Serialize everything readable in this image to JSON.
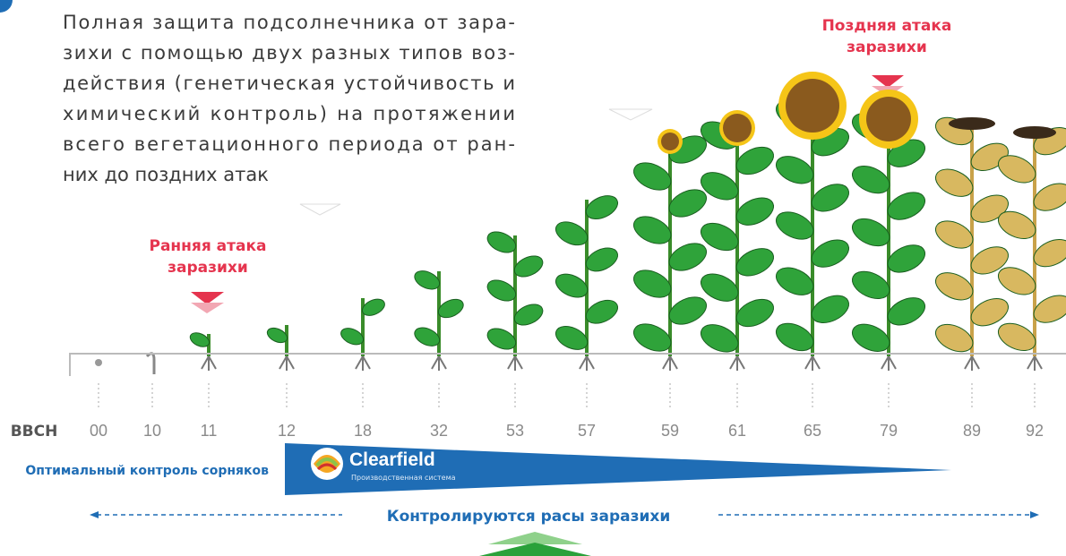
{
  "intro": {
    "lines": [
      "Полная защита подсолнечника от зара-",
      "зихи с помощью двух разных типов воз-",
      "действия (генетическая устойчивость и",
      "химический контроль) на протяжении",
      "всего вегетационного периода от ран-",
      "них до поздних атак"
    ]
  },
  "late_attack": {
    "lines": [
      "Поздняя атака",
      "заразихи"
    ]
  },
  "early_attack": {
    "lines": [
      "Ранняя атака",
      "заразихи"
    ]
  },
  "scale": {
    "label": "BBCH",
    "stages": [
      "00",
      "10",
      "11",
      "12",
      "18",
      "32",
      "53",
      "57",
      "59",
      "61",
      "65",
      "79",
      "89",
      "92"
    ]
  },
  "weed_control": {
    "label": "Оптимальный контроль сорняков",
    "brand": "Clearfield",
    "brand_subtitle": "Производственная система"
  },
  "races": {
    "label": "Контролируются расы заразихи"
  }
}
